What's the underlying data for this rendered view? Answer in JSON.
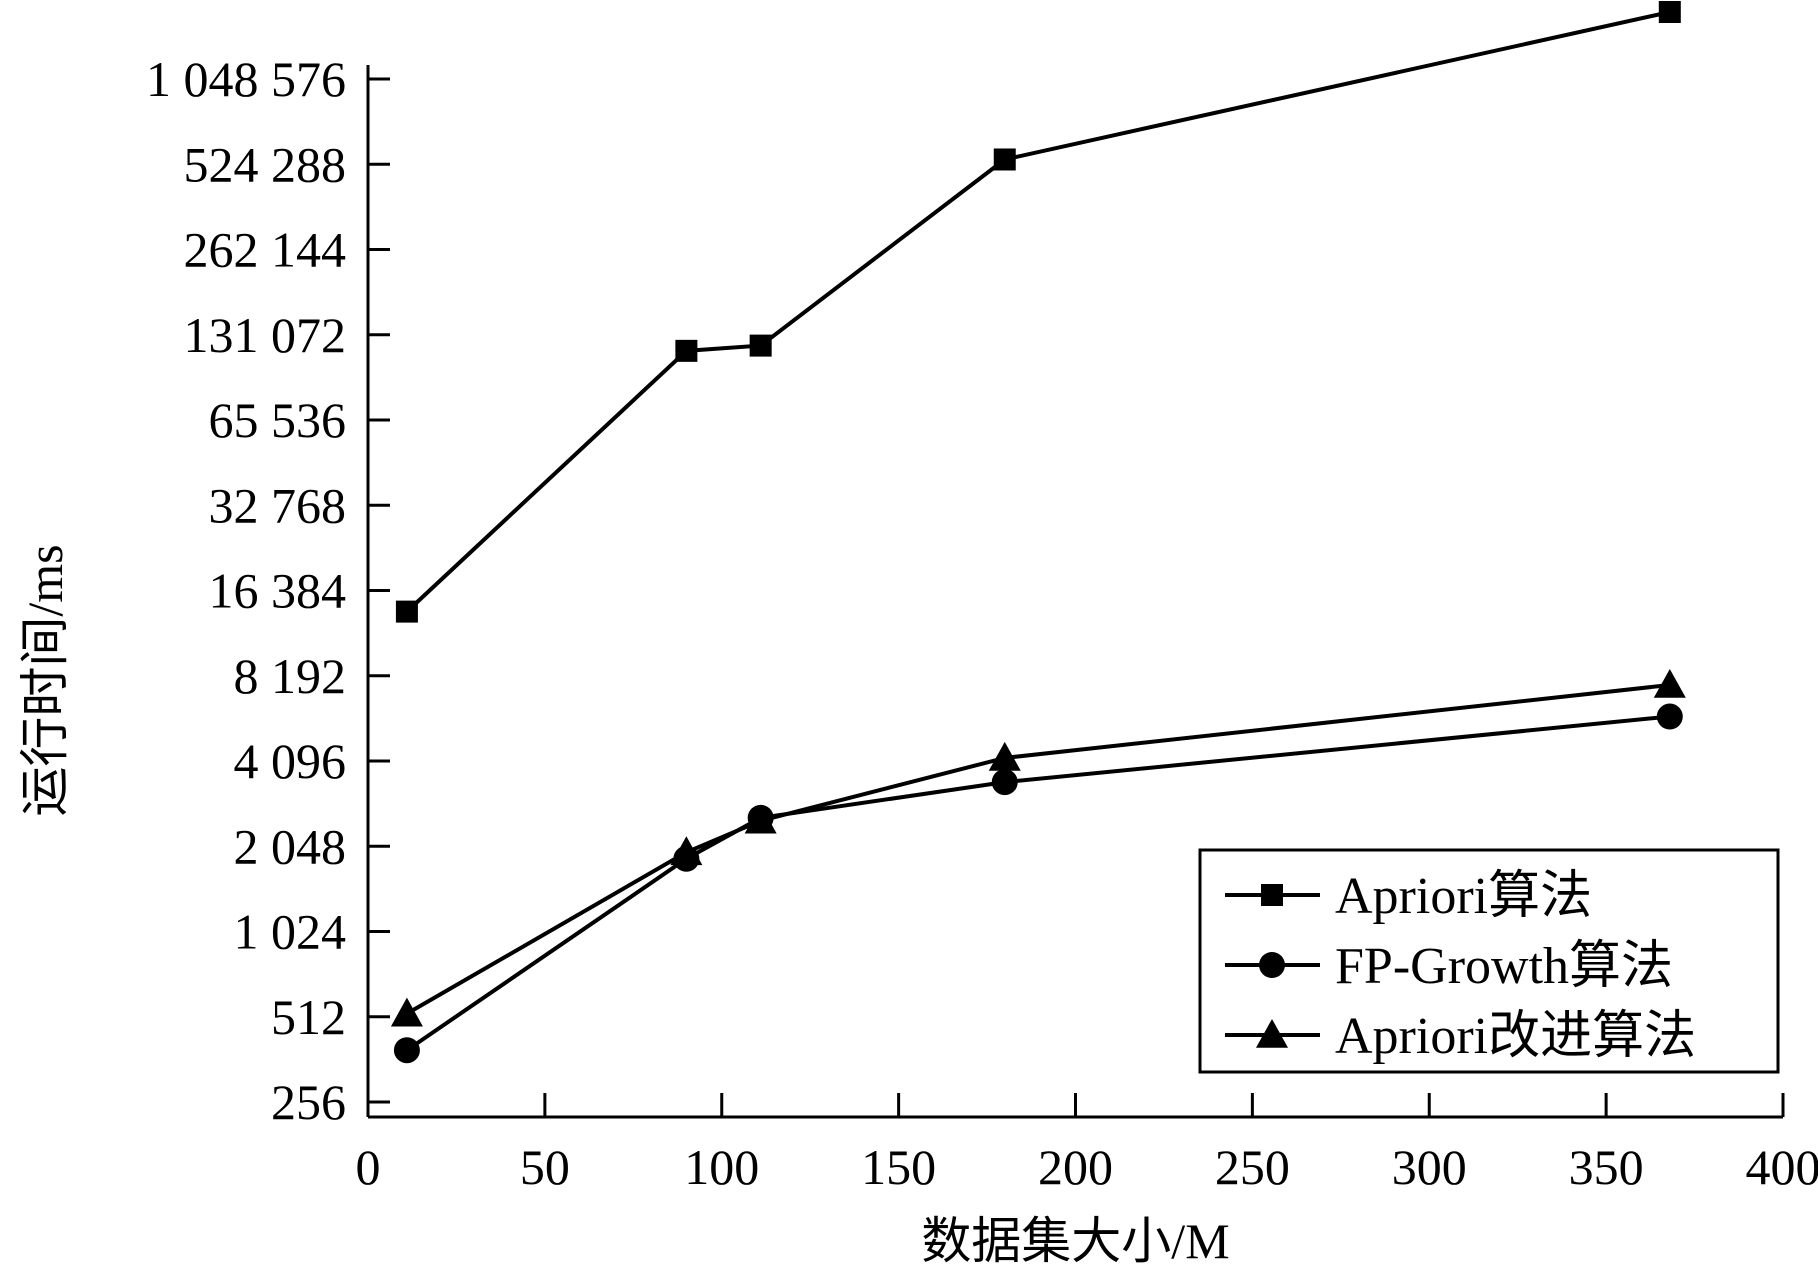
{
  "chart_data": {
    "type": "line",
    "xlabel": "数据集大小/M",
    "ylabel": "运行时间/ms",
    "xlim": [
      0,
      400
    ],
    "x_ticks": [
      0,
      50,
      100,
      150,
      200,
      250,
      300,
      350,
      400
    ],
    "x_tick_labels": [
      "0",
      "50",
      "100",
      "150",
      "200",
      "250",
      "300",
      "350",
      "400"
    ],
    "y_scale": "log2",
    "ylim": [
      256,
      1400000
    ],
    "y_ticks": [
      256,
      512,
      1024,
      2048,
      4096,
      8192,
      16384,
      32768,
      65536,
      131072,
      262144,
      524288,
      1048576
    ],
    "y_tick_labels": [
      "256",
      "512",
      "1 024",
      "2 048",
      "4 096",
      "8 192",
      "16 384",
      "32 768",
      "65 536",
      "131 072",
      "262 144",
      "524 288",
      "1 048 576"
    ],
    "grid": false,
    "legend_position": "bottom-right",
    "series": [
      {
        "name": "Apriori算法",
        "marker": "square",
        "x": [
          11,
          90,
          111,
          180,
          368
        ],
        "y": [
          13800,
          115000,
          120000,
          545000,
          2000000
        ]
      },
      {
        "name": "FP-Growth算法",
        "marker": "circle",
        "x": [
          11,
          90,
          111,
          180,
          368
        ],
        "y": [
          390,
          1850,
          2580,
          3450,
          5880
        ]
      },
      {
        "name": "Apriori改进算法",
        "marker": "triangle",
        "x": [
          11,
          90,
          111,
          180,
          368
        ],
        "y": [
          525,
          1950,
          2520,
          4200,
          7600
        ]
      }
    ]
  }
}
